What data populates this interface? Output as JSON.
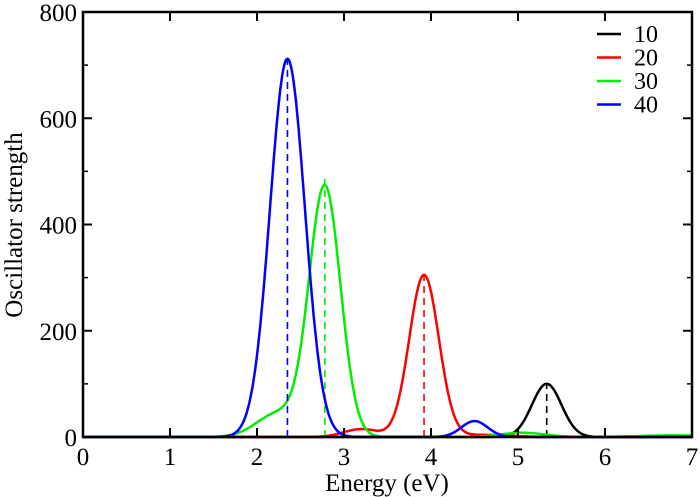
{
  "chart_data": {
    "type": "line",
    "title": "",
    "xlabel": "Energy (eV)",
    "ylabel": "Oscillator strength",
    "xlim": [
      0,
      7
    ],
    "ylim": [
      0,
      800
    ],
    "xticks": [
      "0",
      "1",
      "2",
      "3",
      "4",
      "5",
      "6",
      "7"
    ],
    "yticks": [
      "0",
      "200",
      "400",
      "600",
      "800"
    ],
    "grid": false,
    "legend_position": "top-right",
    "series": [
      {
        "name": "10",
        "color": "#000000",
        "peaks": [
          {
            "center": 5.33,
            "height": 100,
            "width": 0.17
          }
        ],
        "stick": {
          "x": 5.33,
          "y": 100
        }
      },
      {
        "name": "20",
        "color": "#ff0000",
        "peaks": [
          {
            "center": 3.92,
            "height": 305,
            "width": 0.17
          },
          {
            "center": 3.2,
            "height": 15,
            "width": 0.2
          },
          {
            "center": 4.6,
            "height": 4,
            "width": 0.3
          }
        ],
        "stick": {
          "x": 3.92,
          "y": 309
        }
      },
      {
        "name": "30",
        "color": "#00ee00",
        "peaks": [
          {
            "center": 2.78,
            "height": 470,
            "width": 0.18
          },
          {
            "center": 2.25,
            "height": 45,
            "width": 0.25
          },
          {
            "center": 5.05,
            "height": 8,
            "width": 0.25
          },
          {
            "center": 6.8,
            "height": 3,
            "width": 0.4
          }
        ],
        "stick": {
          "x": 2.78,
          "y": 486
        }
      },
      {
        "name": "40",
        "color": "#0000ff",
        "peaks": [
          {
            "center": 2.35,
            "height": 712,
            "width": 0.2
          },
          {
            "center": 4.5,
            "height": 30,
            "width": 0.15
          }
        ],
        "stick": {
          "x": 2.35,
          "y": 714
        }
      }
    ]
  }
}
